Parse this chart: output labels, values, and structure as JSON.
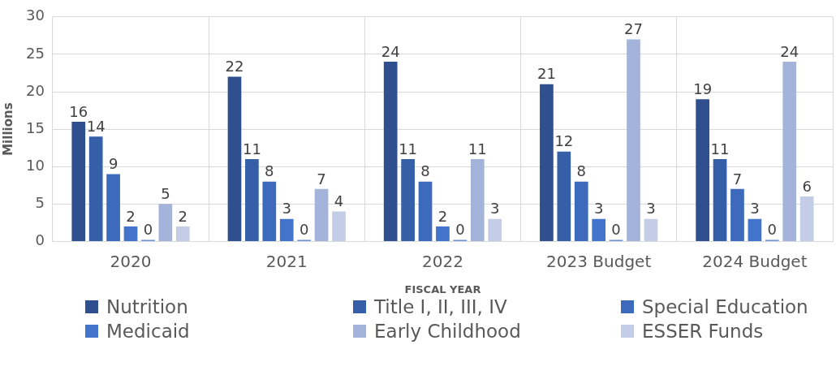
{
  "chart_data": {
    "type": "bar",
    "xlabel": "FISCAL YEAR",
    "ylabel": "Millions",
    "categories": [
      "2020",
      "2021",
      "2022",
      "2023 Budget",
      "2024 Budget"
    ],
    "series": [
      {
        "name": "Nutrition",
        "color": "#2f4f8f",
        "values": [
          16,
          22,
          24,
          21,
          19
        ]
      },
      {
        "name": "Title I, II, III, IV",
        "color": "#3560a8",
        "values": [
          14,
          11,
          11,
          12,
          11
        ]
      },
      {
        "name": "Special Education",
        "color": "#3d6abb",
        "values": [
          9,
          8,
          8,
          8,
          7
        ]
      },
      {
        "name": "Medicaid",
        "color": "#4274cc",
        "values": [
          2,
          3,
          2,
          3,
          3
        ]
      },
      {
        "color": "#6f8fd6",
        "values": [
          0,
          0,
          0,
          0,
          0
        ]
      },
      {
        "name": "Early Childhood",
        "color": "#a3b3da",
        "values": [
          5,
          7,
          11,
          27,
          24
        ]
      },
      {
        "name": "ESSER Funds",
        "color": "#c4cde6",
        "values": [
          2,
          4,
          3,
          3,
          6
        ]
      }
    ],
    "ylim": [
      0,
      30
    ],
    "yticks": [
      0,
      5,
      10,
      15,
      20,
      25,
      30
    ],
    "grid": true,
    "legend": "bottom",
    "data_labels": true
  }
}
